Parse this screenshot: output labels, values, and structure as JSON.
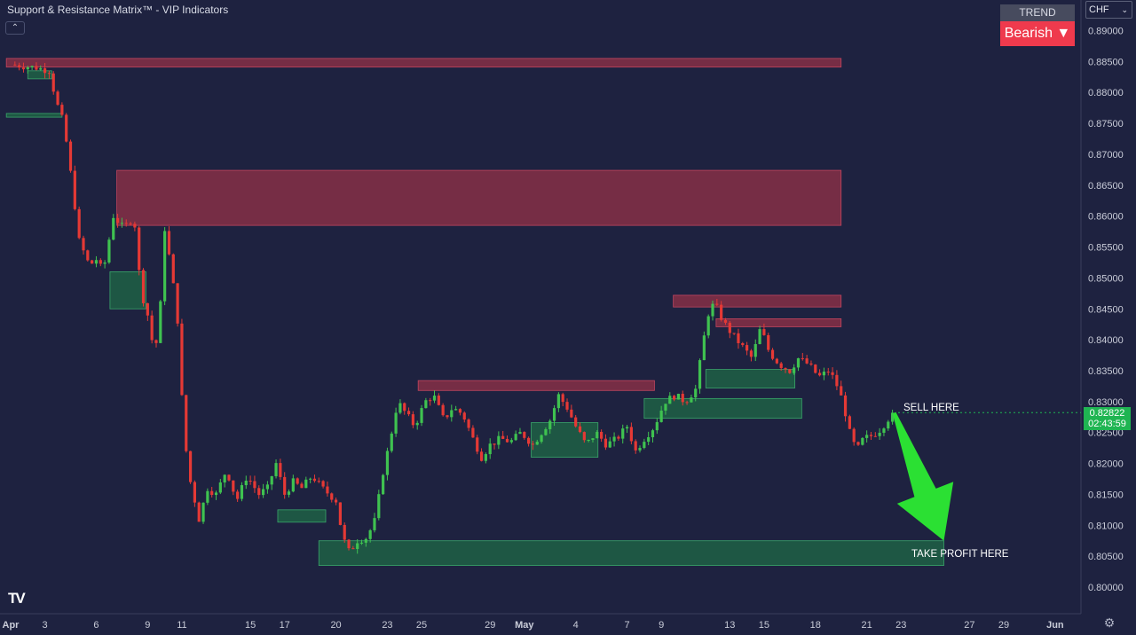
{
  "header": {
    "indicator_title": "Support & Resistance Matrix™ - VIP Indicators",
    "collapse_icon": "chevron-up-icon",
    "collapse_glyph": "⌃"
  },
  "trend_panel": {
    "label": "TREND",
    "value": "Bearish ▼"
  },
  "currency": {
    "selected": "CHF",
    "icon": "chevron-down-icon",
    "glyph": "⌄"
  },
  "price_badge": {
    "price": "0.82822",
    "countdown": "02:43:59"
  },
  "annotations": {
    "sell": "SELL HERE",
    "take_profit": "TAKE PROFIT HERE"
  },
  "logo": {
    "text": "TV",
    "icon": "tradingview-logo-icon"
  },
  "settings": {
    "icon": "gear-icon",
    "glyph": "⚙"
  },
  "colors": {
    "background": "#1e2240",
    "bull": "#3fc250",
    "bear": "#e53935",
    "resistance_fill": "#8a2f47",
    "support_fill": "#1f6a46",
    "arrow": "#2be033",
    "badge": "#1fb552",
    "trend_bearish": "#ef3a4d"
  },
  "chart_data": {
    "type": "candlestick",
    "title": "",
    "xlabel": "",
    "ylabel": "",
    "ylim": [
      0.7985,
      0.8915
    ],
    "y_ticks": [
      "0.89000",
      "0.88500",
      "0.88000",
      "0.87500",
      "0.87000",
      "0.86500",
      "0.86000",
      "0.85500",
      "0.85000",
      "0.84500",
      "0.84000",
      "0.83500",
      "0.83000",
      "0.82500",
      "0.82000",
      "0.81500",
      "0.81000",
      "0.80500",
      "0.80000"
    ],
    "x_ticks": [
      {
        "label": "Apr",
        "day": 0,
        "bold": true
      },
      {
        "label": "3",
        "day": 2
      },
      {
        "label": "6",
        "day": 5
      },
      {
        "label": "9",
        "day": 8
      },
      {
        "label": "11",
        "day": 10
      },
      {
        "label": "15",
        "day": 14
      },
      {
        "label": "17",
        "day": 16
      },
      {
        "label": "20",
        "day": 19
      },
      {
        "label": "23",
        "day": 22
      },
      {
        "label": "25",
        "day": 24
      },
      {
        "label": "29",
        "day": 28
      },
      {
        "label": "May",
        "day": 30,
        "bold": true
      },
      {
        "label": "4",
        "day": 33
      },
      {
        "label": "7",
        "day": 36
      },
      {
        "label": "9",
        "day": 38
      },
      {
        "label": "13",
        "day": 42
      },
      {
        "label": "15",
        "day": 44
      },
      {
        "label": "18",
        "day": 47
      },
      {
        "label": "21",
        "day": 50
      },
      {
        "label": "23",
        "day": 52
      },
      {
        "label": "27",
        "day": 56
      },
      {
        "label": "29",
        "day": 58
      },
      {
        "label": "Jun",
        "day": 61,
        "bold": true
      }
    ],
    "x_range_days": [
      -0.25,
      62.5
    ],
    "last_price": 0.82822,
    "price_path": [
      [
        0.0,
        0.8845
      ],
      [
        1.5,
        0.884
      ],
      [
        2.3,
        0.8835
      ],
      [
        2.6,
        0.879
      ],
      [
        3.1,
        0.875
      ],
      [
        3.6,
        0.865
      ],
      [
        4.0,
        0.856
      ],
      [
        4.6,
        0.852
      ],
      [
        5.0,
        0.853
      ],
      [
        5.4,
        0.851
      ],
      [
        6.0,
        0.86
      ],
      [
        6.6,
        0.858
      ],
      [
        7.2,
        0.86
      ],
      [
        7.6,
        0.848
      ],
      [
        8.1,
        0.843
      ],
      [
        8.4,
        0.837
      ],
      [
        8.8,
        0.847
      ],
      [
        9.0,
        0.858
      ],
      [
        9.4,
        0.851
      ],
      [
        9.8,
        0.842
      ],
      [
        10.1,
        0.825
      ],
      [
        10.5,
        0.817
      ],
      [
        11.0,
        0.811
      ],
      [
        11.5,
        0.816
      ],
      [
        12.0,
        0.815
      ],
      [
        12.6,
        0.819
      ],
      [
        13.2,
        0.814
      ],
      [
        13.8,
        0.818
      ],
      [
        14.5,
        0.815
      ],
      [
        15.0,
        0.816
      ],
      [
        15.5,
        0.82
      ],
      [
        16.0,
        0.815
      ],
      [
        16.5,
        0.817
      ],
      [
        17.0,
        0.816
      ],
      [
        17.6,
        0.818
      ],
      [
        18.2,
        0.816
      ],
      [
        19.0,
        0.814
      ],
      [
        19.4,
        0.808
      ],
      [
        19.8,
        0.8055
      ],
      [
        20.2,
        0.8075
      ],
      [
        20.8,
        0.808
      ],
      [
        21.3,
        0.811
      ],
      [
        21.7,
        0.818
      ],
      [
        22.1,
        0.823
      ],
      [
        22.6,
        0.83
      ],
      [
        23.1,
        0.828
      ],
      [
        23.6,
        0.826
      ],
      [
        24.2,
        0.83
      ],
      [
        24.7,
        0.831
      ],
      [
        25.3,
        0.827
      ],
      [
        25.8,
        0.829
      ],
      [
        26.4,
        0.828
      ],
      [
        27.0,
        0.824
      ],
      [
        27.5,
        0.821
      ],
      [
        28.0,
        0.823
      ],
      [
        28.6,
        0.824
      ],
      [
        29.2,
        0.8235
      ],
      [
        29.8,
        0.825
      ],
      [
        30.5,
        0.823
      ],
      [
        31.0,
        0.825
      ],
      [
        31.5,
        0.827
      ],
      [
        32.0,
        0.831
      ],
      [
        32.5,
        0.829
      ],
      [
        33.0,
        0.826
      ],
      [
        33.6,
        0.823
      ],
      [
        34.2,
        0.825
      ],
      [
        34.8,
        0.823
      ],
      [
        35.4,
        0.824
      ],
      [
        36.0,
        0.826
      ],
      [
        36.5,
        0.822
      ],
      [
        37.0,
        0.824
      ],
      [
        37.6,
        0.826
      ],
      [
        38.2,
        0.83
      ],
      [
        38.8,
        0.831
      ],
      [
        39.4,
        0.83
      ],
      [
        40.0,
        0.832
      ],
      [
        40.3,
        0.837
      ],
      [
        40.7,
        0.844
      ],
      [
        41.1,
        0.846
      ],
      [
        41.6,
        0.843
      ],
      [
        42.1,
        0.841
      ],
      [
        42.7,
        0.839
      ],
      [
        43.3,
        0.837
      ],
      [
        43.8,
        0.842
      ],
      [
        44.3,
        0.838
      ],
      [
        44.9,
        0.836
      ],
      [
        45.5,
        0.835
      ],
      [
        46.0,
        0.837
      ],
      [
        46.6,
        0.836
      ],
      [
        47.2,
        0.834
      ],
      [
        47.8,
        0.835
      ],
      [
        48.2,
        0.833
      ],
      [
        48.6,
        0.83
      ],
      [
        49.0,
        0.825
      ],
      [
        49.4,
        0.822
      ],
      [
        49.8,
        0.824
      ],
      [
        50.3,
        0.8245
      ],
      [
        50.8,
        0.8255
      ],
      [
        51.2,
        0.827
      ],
      [
        51.5,
        0.8282
      ]
    ],
    "resistance_zones": [
      {
        "from_day": -0.25,
        "to_day": 48.5,
        "top": 0.8855,
        "bottom": 0.8841
      },
      {
        "from_day": 6.2,
        "to_day": 48.5,
        "top": 0.8674,
        "bottom": 0.8585
      },
      {
        "from_day": 38.7,
        "to_day": 48.5,
        "top": 0.8472,
        "bottom": 0.8453
      },
      {
        "from_day": 41.2,
        "to_day": 48.5,
        "top": 0.8434,
        "bottom": 0.8421
      },
      {
        "from_day": 23.8,
        "to_day": 37.6,
        "top": 0.8334,
        "bottom": 0.8318
      }
    ],
    "support_zones": [
      {
        "from_day": -0.25,
        "to_day": 3.0,
        "top": 0.8766,
        "bottom": 0.876
      },
      {
        "from_day": 1.0,
        "to_day": 2.4,
        "top": 0.8835,
        "bottom": 0.8822
      },
      {
        "from_day": 5.8,
        "to_day": 7.9,
        "top": 0.851,
        "bottom": 0.845
      },
      {
        "from_day": 15.6,
        "to_day": 18.4,
        "top": 0.8125,
        "bottom": 0.8105
      },
      {
        "from_day": 30.4,
        "to_day": 34.3,
        "top": 0.8266,
        "bottom": 0.821
      },
      {
        "from_day": 37.0,
        "to_day": 46.2,
        "top": 0.8305,
        "bottom": 0.8273
      },
      {
        "from_day": 40.6,
        "to_day": 45.8,
        "top": 0.8352,
        "bottom": 0.8322
      },
      {
        "from_day": 18.0,
        "to_day": 54.5,
        "top": 0.8075,
        "bottom": 0.8035
      }
    ],
    "arrow": {
      "from_day": 51.6,
      "from_price": 0.8282,
      "to_day": 54.5,
      "to_price": 0.8075
    }
  }
}
